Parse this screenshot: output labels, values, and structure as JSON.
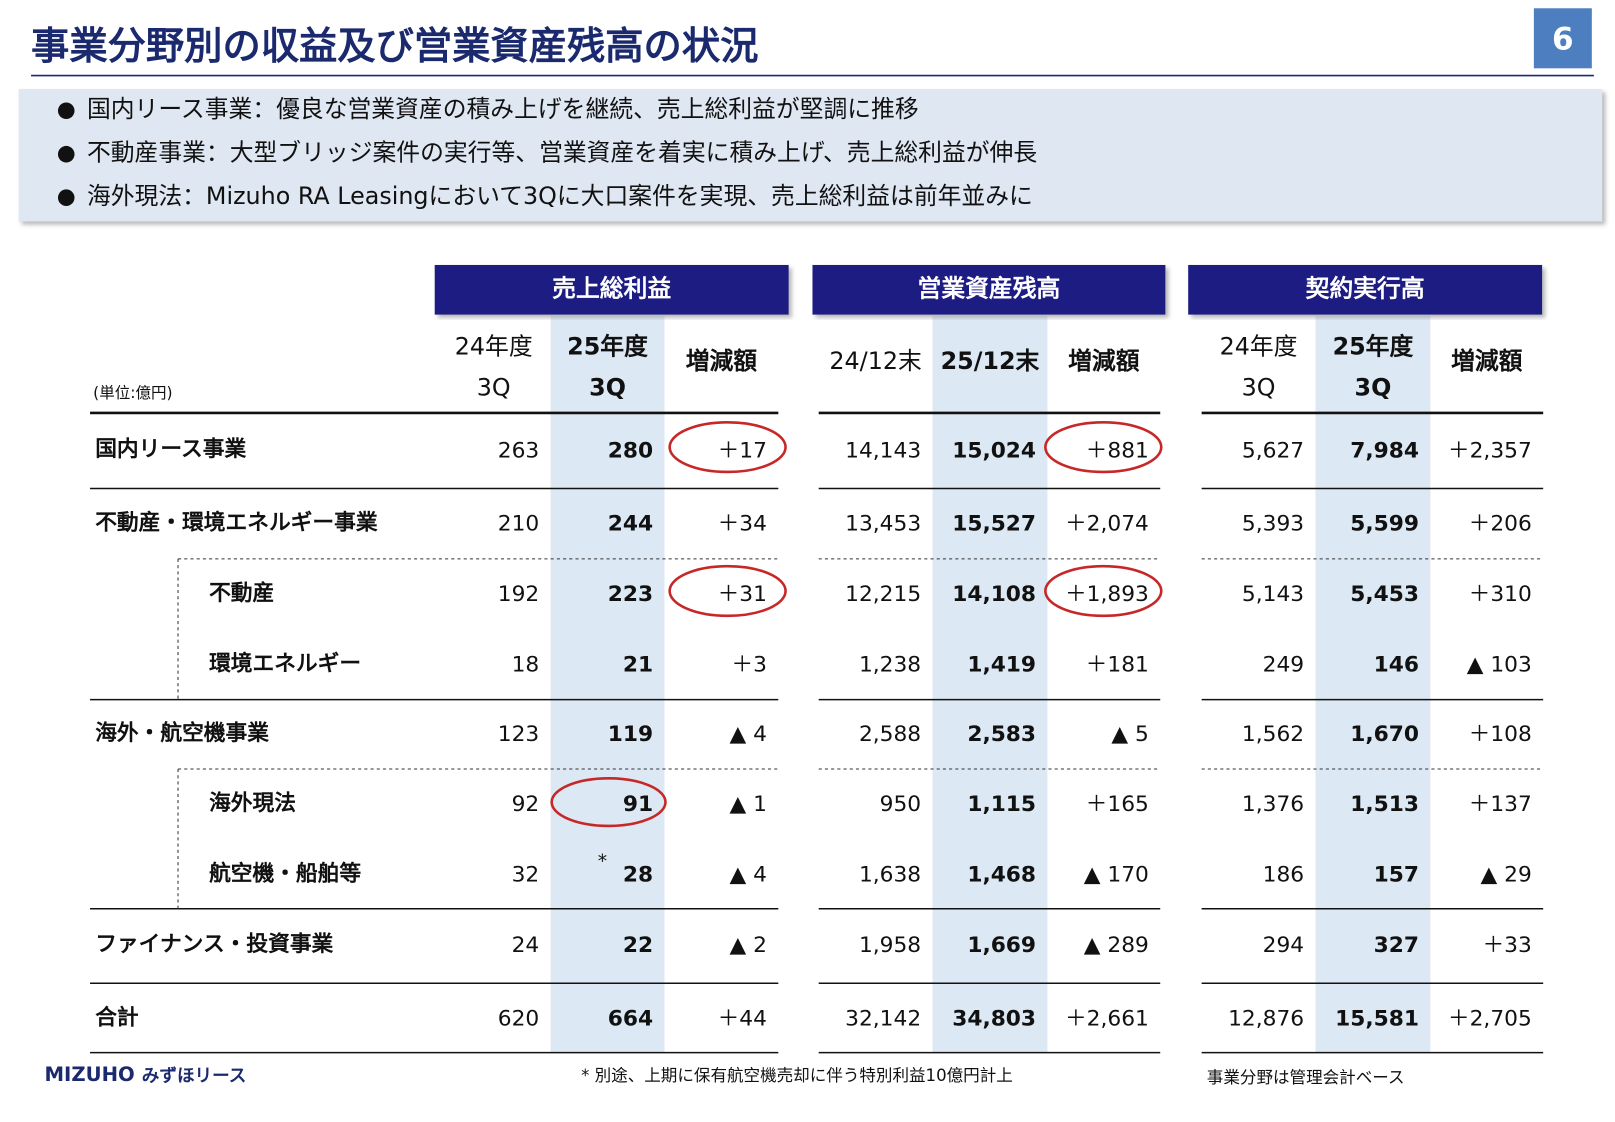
{
  "title": "事業分野別の収益及び営業資産残高の状況",
  "page_number": "6",
  "bullets": [
    "国内リース事業：優良な営業資産の積み上げを継続、売上総利益が堅調に推移",
    "不動産事業：大型ブリッジ案件の実行等、営業資産を着実に積み上げ、売上総利益が伸長",
    "海外現法：Mizuho RA Leasingにおいて3Qに大口案件を実現、売上総利益は前年並みに"
  ],
  "table": {
    "unit": "(単位:億円)",
    "groups": [
      {
        "title": "売上総利益",
        "columns": [
          [
            "24年度",
            "3Q"
          ],
          [
            "25年度",
            "3Q"
          ],
          [
            "増減額"
          ]
        ]
      },
      {
        "title": "営業資産残高",
        "columns": [
          [
            "24/12末"
          ],
          [
            "25/12末"
          ],
          [
            "増減額"
          ]
        ]
      },
      {
        "title": "契約実行高",
        "columns": [
          [
            "24年度",
            "3Q"
          ],
          [
            "25年度",
            "3Q"
          ],
          [
            "増減額"
          ]
        ]
      }
    ],
    "rows": [
      {
        "label": "国内リース事業",
        "cells": [
          "263",
          "280",
          "＋17",
          "14,143",
          "15,024",
          "＋881",
          "5,627",
          "7,984",
          "＋2,357"
        ]
      },
      {
        "label": "不動産・環境エネルギー事業",
        "cells": [
          "210",
          "244",
          "＋34",
          "13,453",
          "15,527",
          "＋2,074",
          "5,393",
          "5,599",
          "＋206"
        ]
      },
      {
        "label": "不動産",
        "cells": [
          "192",
          "223",
          "＋31",
          "12,215",
          "14,108",
          "＋1,893",
          "5,143",
          "5,453",
          "＋310"
        ]
      },
      {
        "label": "環境エネルギー",
        "cells": [
          "18",
          "21",
          "＋3",
          "1,238",
          "1,419",
          "＋181",
          "249",
          "146",
          "▲ 103"
        ]
      },
      {
        "label": "海外・航空機事業",
        "cells": [
          "123",
          "119",
          "▲ 4",
          "2,588",
          "2,583",
          "▲ 5",
          "1,562",
          "1,670",
          "＋108"
        ]
      },
      {
        "label": "海外現法",
        "cells": [
          "92",
          "91",
          "▲ 1",
          "950",
          "1,115",
          "＋165",
          "1,376",
          "1,513",
          "＋137"
        ]
      },
      {
        "label": "航空機・船舶等",
        "note": "*",
        "cells": [
          "32",
          "28",
          "▲ 4",
          "1,638",
          "1,468",
          "▲ 170",
          "186",
          "157",
          "▲ 29"
        ]
      },
      {
        "label": "ファイナンス・投資事業",
        "cells": [
          "24",
          "22",
          "▲ 2",
          "1,958",
          "1,669",
          "▲ 289",
          "294",
          "327",
          "＋33"
        ]
      },
      {
        "label": "合計",
        "cells": [
          "620",
          "664",
          "＋44",
          "32,142",
          "34,803",
          "＋2,661",
          "12,876",
          "15,581",
          "＋2,705"
        ]
      }
    ]
  },
  "footnote": "* 別途、上期に保有航空機売却に伴う特別利益10億円計上",
  "note": "事業分野は管理会計ベース",
  "logo": {
    "brand": "MIZUHO",
    "name": "みずほリース"
  }
}
